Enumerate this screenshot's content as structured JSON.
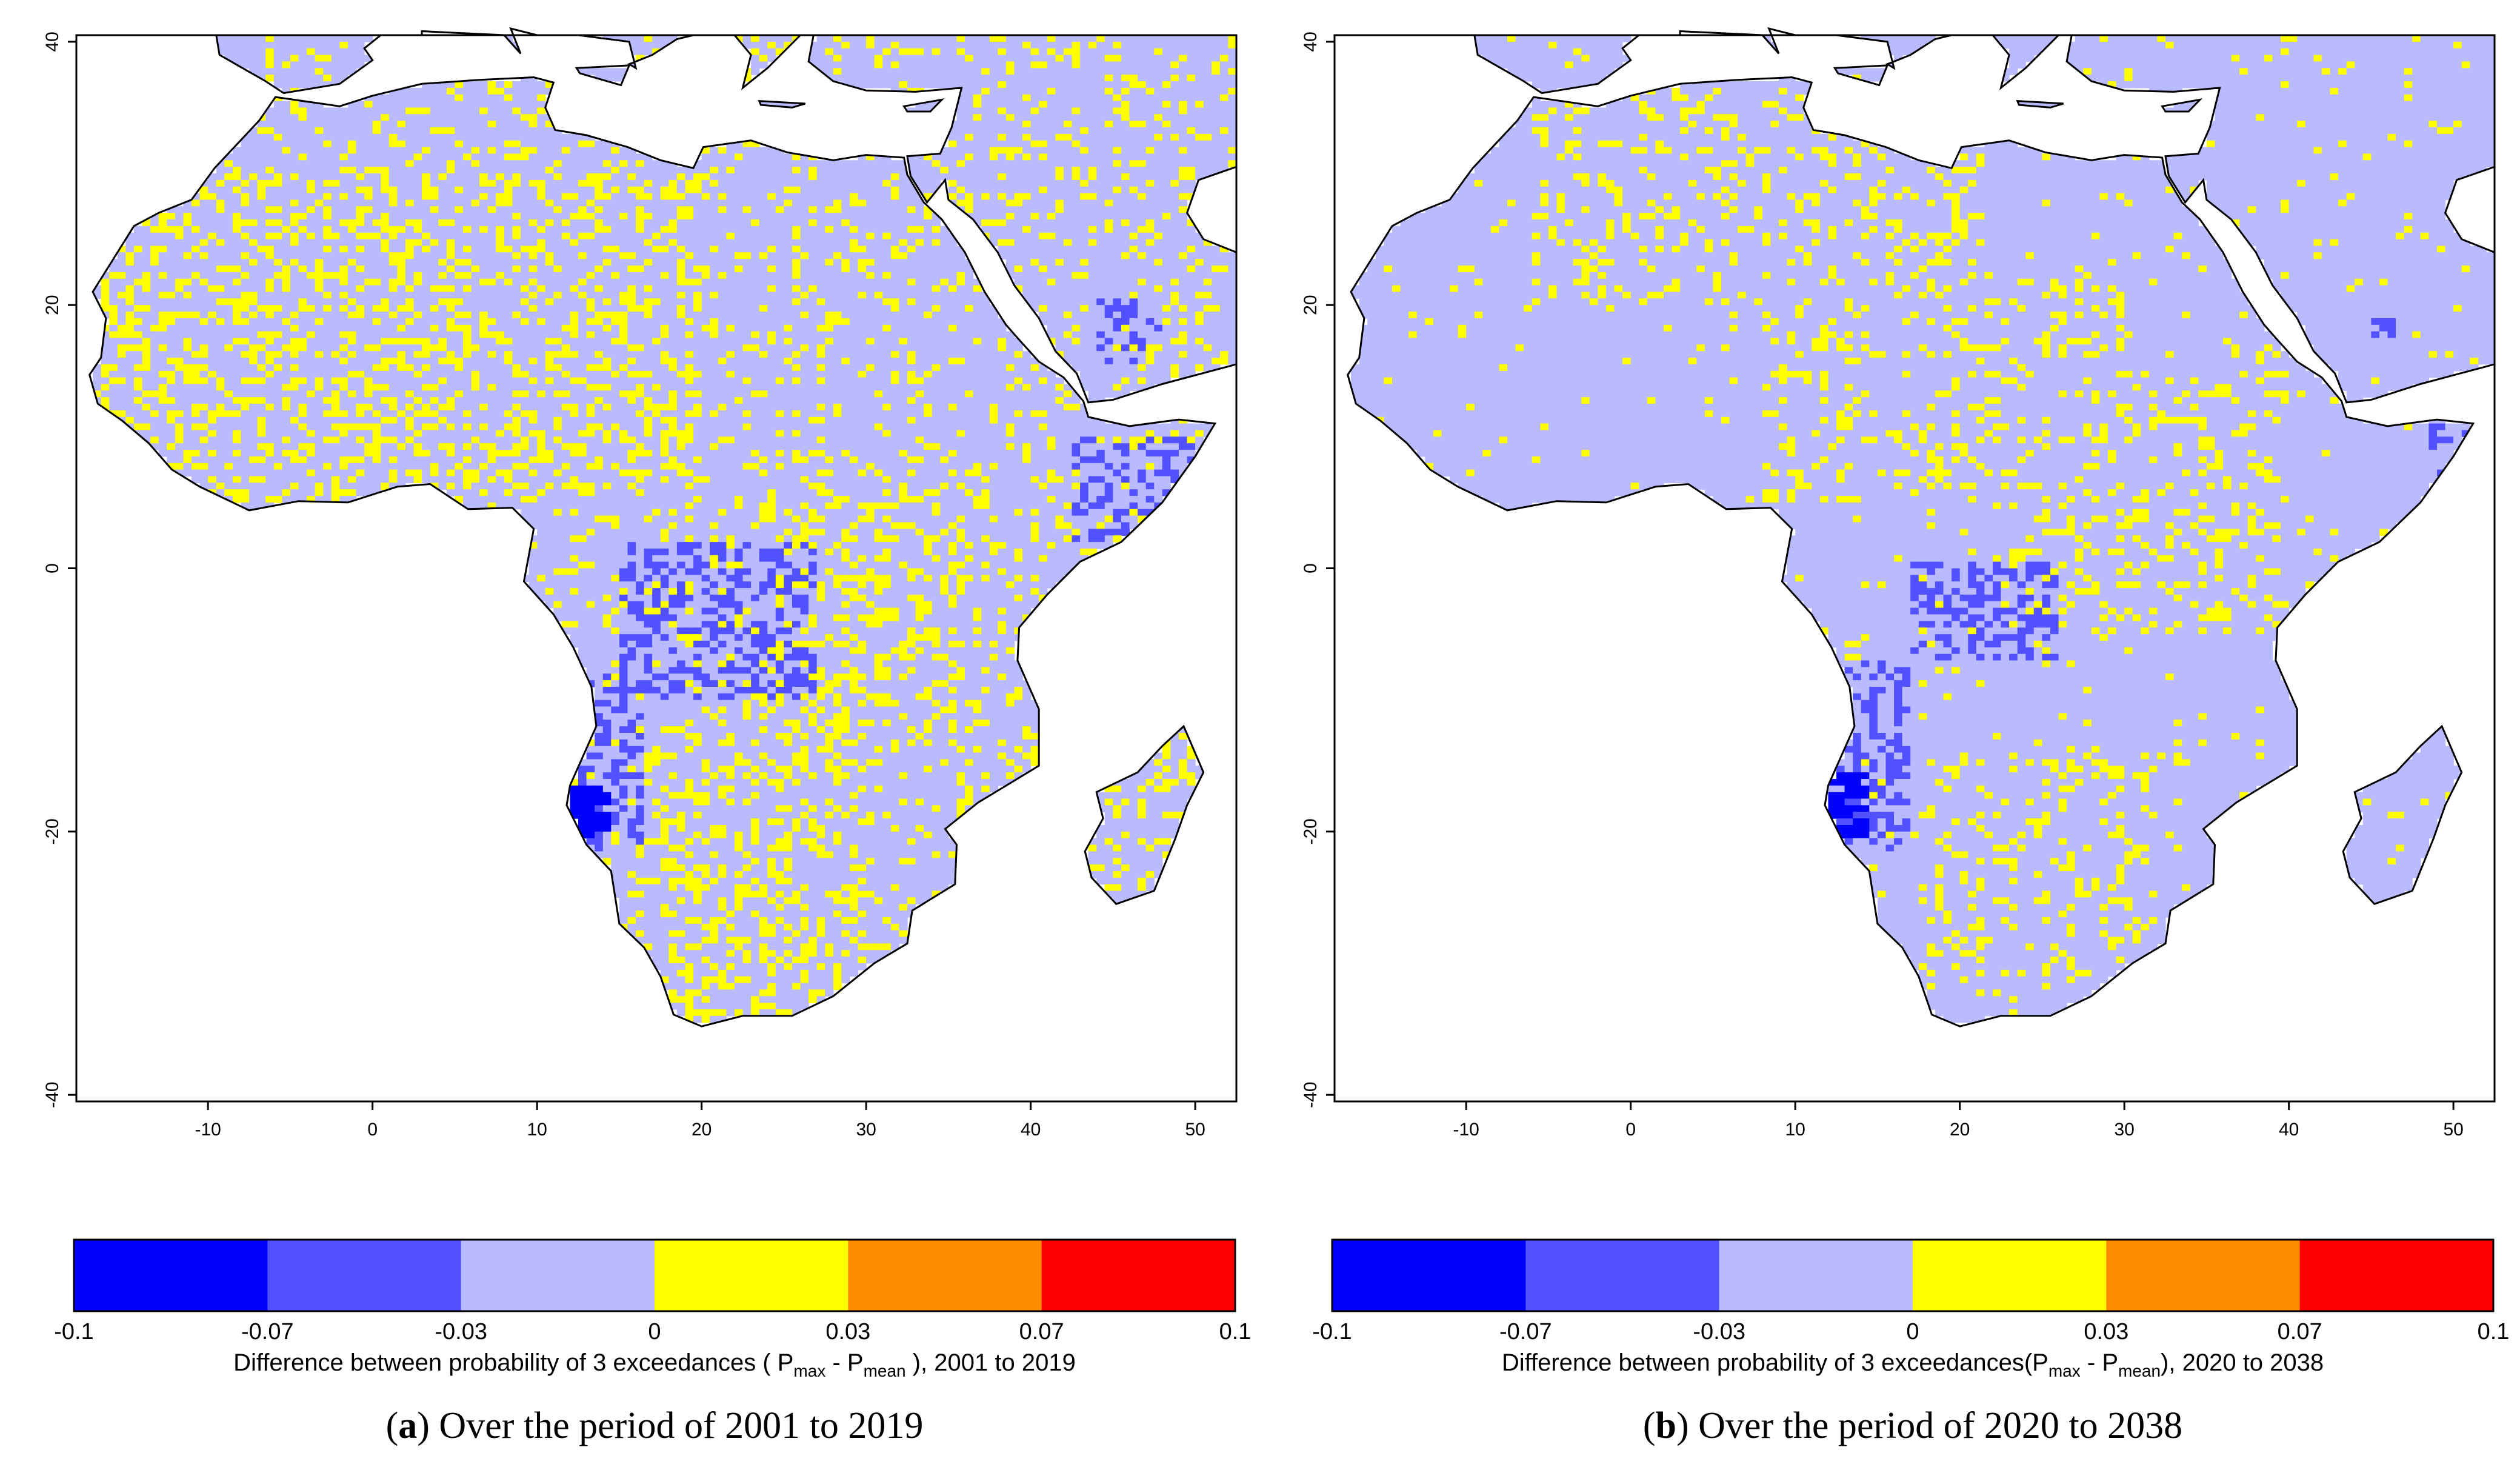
{
  "chart_data": [
    {
      "type": "heatmap",
      "panel": "a",
      "caption_letter": "a",
      "caption_text": "Over the period of 2001 to 2019",
      "xlim": [
        -18,
        52.5
      ],
      "ylim": [
        -40.5,
        40.5
      ],
      "x_ticks": [
        -10,
        0,
        10,
        20,
        30,
        40,
        50
      ],
      "y_ticks": [
        40,
        20,
        0,
        -20,
        -40
      ],
      "x_tick_labels": [
        "-10",
        "0",
        "10",
        "20",
        "30",
        "40",
        "50"
      ],
      "y_tick_labels": [
        "40",
        "20",
        "0",
        "-20",
        "-40"
      ],
      "colorbar": {
        "breaks": [
          -0.1,
          -0.07,
          -0.03,
          0,
          0.03,
          0.07,
          0.1
        ],
        "break_labels": [
          "-0.1",
          "-0.07",
          "-0.03",
          "0",
          "0.03",
          "0.07",
          "0.1"
        ],
        "colors": [
          "#0000ff",
          "#5151ff",
          "#babaff",
          "#ffff00",
          "#ff8c00",
          "#ff0000"
        ],
        "title_prefix": "Difference between probability of 3 exceedances ( P",
        "title_sub1": "max",
        "title_mid": " - P",
        "title_sub2": "mean",
        "title_suffix": " ), 2001 to 2019"
      },
      "summary": {
        "dominant_range": [
          -0.03,
          0
        ],
        "yellow_fraction": 0.22,
        "blue_fraction": 0.025,
        "darkblue_fraction": 0.006,
        "strong_negative_regions": [
          "Namibia/Angola coast (~12-14E, -16 to -20)",
          "Central Africa (~18-28E, 0 to -10)",
          "Somalia (~43-50E, 3 to 10)",
          "Arabian Peninsula (~44-48E, 16 to 20)"
        ]
      }
    },
    {
      "type": "heatmap",
      "panel": "b",
      "caption_letter": "b",
      "caption_text": "Over the period of 2020 to 2038",
      "xlim": [
        -18,
        52.5
      ],
      "ylim": [
        -40.5,
        40.5
      ],
      "x_ticks": [
        -10,
        0,
        10,
        20,
        30,
        40,
        50
      ],
      "y_ticks": [
        40,
        20,
        0,
        -20,
        -40
      ],
      "x_tick_labels": [
        "-10",
        "0",
        "10",
        "20",
        "30",
        "40",
        "50"
      ],
      "y_tick_labels": [
        "40",
        "20",
        "0",
        "-20",
        "-40"
      ],
      "colorbar": {
        "breaks": [
          -0.1,
          -0.07,
          -0.03,
          0,
          0.03,
          0.07,
          0.1
        ],
        "break_labels": [
          "-0.1",
          "-0.07",
          "-0.03",
          "0",
          "0.03",
          "0.07",
          "0.1"
        ],
        "colors": [
          "#0000ff",
          "#5151ff",
          "#babaff",
          "#ffff00",
          "#ff8c00",
          "#ff0000"
        ],
        "title_prefix": "Difference between probability of 3 exceedances(P",
        "title_sub1": "max",
        "title_mid": " - P",
        "title_sub2": "mean",
        "title_suffix": "),  2020 to 2038"
      },
      "summary": {
        "dominant_range": [
          -0.03,
          0
        ],
        "yellow_fraction": 0.11,
        "blue_fraction": 0.02,
        "darkblue_fraction": 0.006,
        "strong_negative_regions": [
          "Namibia/Angola coast (~12-14E, -15 to -20)",
          "Central Africa (~20-26E, 0 to -6)",
          "Somalia (~49-51E, 7 to 11)",
          "Arabian Peninsula (~45-47E, 18 to 19)"
        ]
      }
    }
  ]
}
